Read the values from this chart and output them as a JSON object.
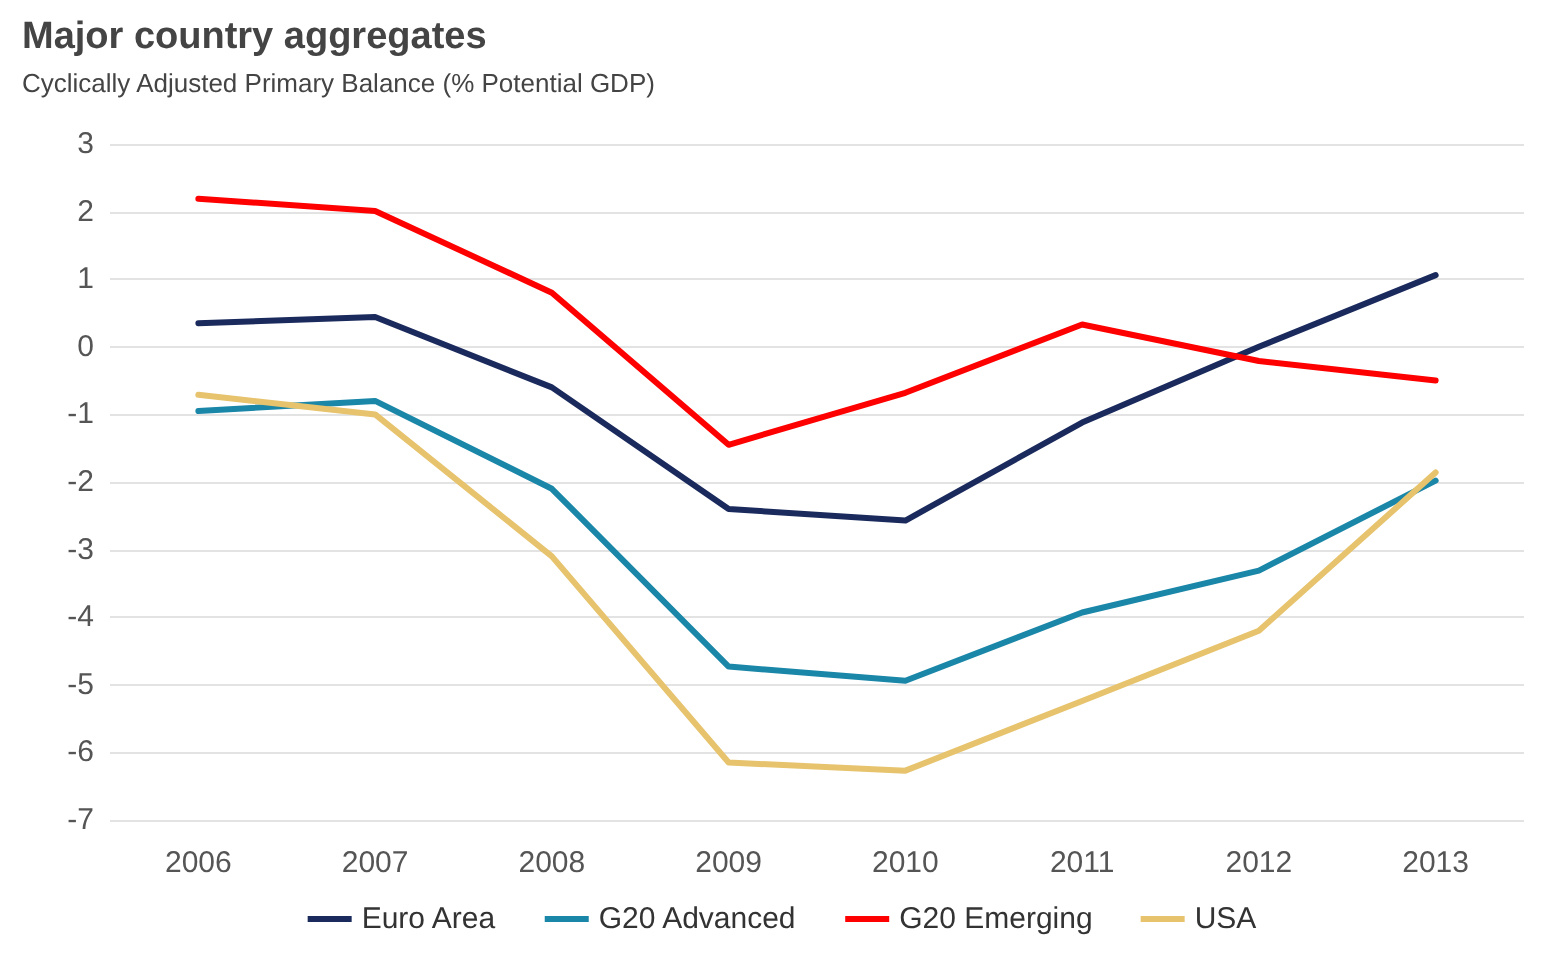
{
  "chart_data": {
    "type": "line",
    "title": "Major country aggregates",
    "subtitle": "Cyclically Adjusted Primary Balance (% Potential GDP)",
    "categories": [
      "2006",
      "2007",
      "2008",
      "2009",
      "2010",
      "2011",
      "2012",
      "2013"
    ],
    "series": [
      {
        "name": "Euro Area",
        "color": "#1b2a5c",
        "values": [
          0.35,
          0.44,
          -0.6,
          -2.4,
          -2.57,
          -1.12,
          0,
          1.06
        ]
      },
      {
        "name": "G20 Advanced",
        "color": "#1a86a8",
        "values": [
          -0.95,
          -0.8,
          -2.1,
          -4.73,
          -4.94,
          -3.93,
          -3.31,
          -1.98
        ]
      },
      {
        "name": "G20 Emerging",
        "color": "#ff0000",
        "values": [
          2.19,
          2.01,
          0.8,
          -1.45,
          -0.68,
          0.33,
          -0.21,
          -0.5
        ]
      },
      {
        "name": "USA",
        "color": "#e6c36c",
        "values": [
          -0.71,
          -1.0,
          -3.1,
          -6.15,
          -6.27,
          -5.24,
          -4.2,
          -1.86
        ]
      }
    ],
    "ylim": [
      -7,
      3
    ],
    "yticks": [
      -7,
      -6,
      -5,
      -4,
      -3,
      -2,
      -1,
      0,
      1,
      2,
      3
    ],
    "grid": "y",
    "legend": "bottom",
    "marker": "none",
    "line_style": "solid"
  }
}
